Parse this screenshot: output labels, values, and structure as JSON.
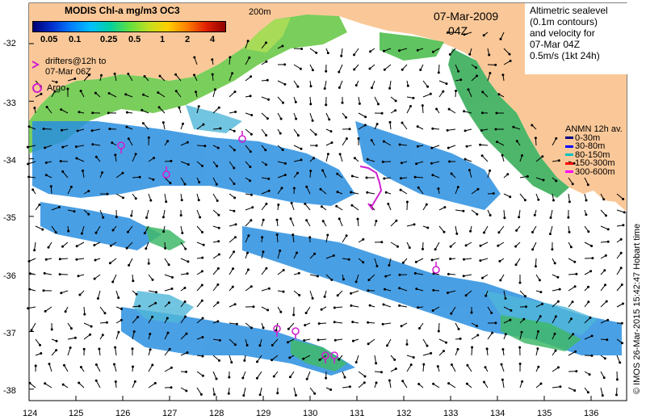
{
  "map": {
    "chl_title": "MODIS Chl-a mg/m3 OC3",
    "colorbar_ticks": [
      "0.05",
      "0.1",
      "0.25",
      "0.5",
      "1",
      "2",
      "4"
    ],
    "depth_label": "200m",
    "date": "07-Mar-2009",
    "hour": "04Z",
    "legend_lines": [
      "Altimetric sealevel",
      "(0.1m contours)",
      "and velocity for",
      "07-Mar 04Z",
      "0.5m/s (1kt 24h)"
    ],
    "drifter_label_1": "drifters@12h to",
    "drifter_label_2": "07-Mar 06Z",
    "argo_label": "Argo",
    "anmn_title": "ANMN 12h av.",
    "anmn_items": [
      {
        "label": "0-30m",
        "color": "#000080"
      },
      {
        "label": "30-80m",
        "color": "#0000ff"
      },
      {
        "label": "80-150m",
        "color": "#00c0c0"
      },
      {
        "label": "150-300m",
        "color": "#ff0000"
      },
      {
        "label": "300-600m",
        "color": "#ff00ff"
      }
    ],
    "y_ticks": [
      "-32",
      "-33",
      "-34",
      "-35",
      "-36",
      "-37",
      "-38"
    ],
    "x_ticks": [
      "124",
      "125",
      "126",
      "127",
      "128",
      "129",
      "130",
      "131",
      "132",
      "133",
      "134",
      "135",
      "136"
    ],
    "credit": "© IMOS 26-Mar-2015 15:42:47 Hobart time",
    "colors": {
      "land": "#fac898",
      "coast_green": "#55c04a",
      "ocean_blue": "#2a8fe0",
      "argo": "#d020d0"
    }
  }
}
